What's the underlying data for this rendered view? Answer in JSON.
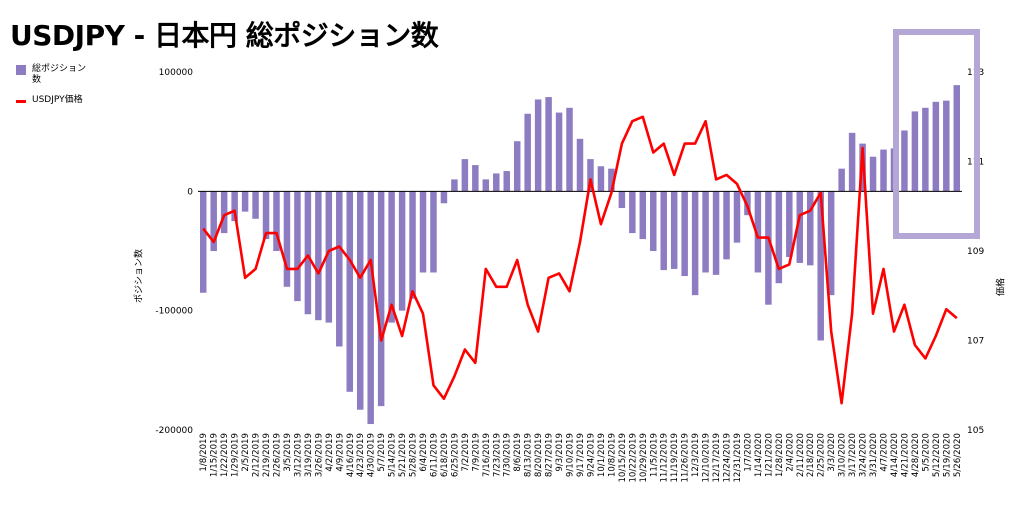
{
  "title": "USDJPY - 日本円 総ポジション数",
  "legend": [
    {
      "name": "総ポジション数",
      "kind": "bar"
    },
    {
      "name": "USDJPY価格",
      "kind": "line"
    }
  ],
  "colors": {
    "bar": "#8e7cc3",
    "line": "#ff0000",
    "highlight": "#b4a7d6",
    "grid": "#000000"
  },
  "chart_data": {
    "type": "bar+line",
    "title": "USDJPY - 日本円 総ポジション数",
    "ylabel": "ポジション数",
    "y2label": "価格",
    "ylim": [
      -200000,
      100000
    ],
    "y2lim": [
      105,
      113
    ],
    "yticks": [
      "100000",
      "0",
      "-100000",
      "-200000"
    ],
    "y2ticks": [
      "113",
      "111",
      "109",
      "107",
      "105"
    ],
    "categories": [
      "1/8/2019",
      "1/15/2019",
      "1/22/2019",
      "1/29/2019",
      "2/5/2019",
      "2/12/2019",
      "2/19/2019",
      "2/26/2019",
      "3/5/2019",
      "3/12/2019",
      "3/19/2019",
      "3/26/2019",
      "4/2/2019",
      "4/9/2019",
      "4/16/2019",
      "4/23/2019",
      "4/30/2019",
      "5/7/2019",
      "5/14/2019",
      "5/21/2019",
      "5/28/2019",
      "6/4/2019",
      "6/11/2019",
      "6/18/2019",
      "6/25/2019",
      "7/2/2019",
      "7/9/2019",
      "7/16/2019",
      "7/23/2019",
      "7/30/2019",
      "8/6/2019",
      "8/13/2019",
      "8/20/2019",
      "8/27/2019",
      "9/3/2019",
      "9/10/2019",
      "9/17/2019",
      "9/24/2019",
      "10/1/2019",
      "10/8/2019",
      "10/15/2019",
      "10/22/2019",
      "10/29/2019",
      "11/5/2019",
      "11/12/2019",
      "11/19/2019",
      "11/26/2019",
      "12/3/2019",
      "12/10/2019",
      "12/17/2019",
      "12/24/2019",
      "12/31/2019",
      "1/7/2020",
      "1/14/2020",
      "1/21/2020",
      "1/28/2020",
      "2/4/2020",
      "2/11/2020",
      "2/18/2020",
      "2/25/2020",
      "3/3/2020",
      "3/10/2020",
      "3/17/2020",
      "3/24/2020",
      "3/31/2020",
      "4/7/2020",
      "4/14/2020",
      "4/21/2020",
      "4/28/2020",
      "5/5/2020",
      "5/12/2020",
      "5/19/2020",
      "5/26/2020"
    ],
    "xtick_labels": [
      "1/8/2019",
      "1/15/2019",
      "1/22/2019",
      "1/29/2019",
      "2/5/2019",
      "2/12/2019",
      "2/19/2019",
      "2/26/2019",
      "3/5/2019",
      "3/12/2019",
      "3/19/2019",
      "3/26/2019",
      "4/2/2019",
      "4/9/2019",
      "4/16/2019",
      "4/23/2019",
      "4/30/2019",
      "5/7/2019",
      "5/14/2019",
      "5/21/2019",
      "5/28/2019",
      "6/4/2019",
      "6/11/2019",
      "6/18/2019",
      "6/25/2019",
      "7/2/2019",
      "7/9/2019",
      "7/16/2019",
      "7/23/2019",
      "7/30/2019",
      "8/6/2019",
      "8/13/2019",
      "8/20/2019",
      "8/27/2019",
      "9/3/2019",
      "9/10/2019",
      "9/17/2019",
      "9/24/2019",
      "10/1/2019",
      "10/8/2019",
      "10/15/2019",
      "10/22/2019",
      "10/29/2019",
      "11/5/2019",
      "11/12/2019",
      "11/19/2019",
      "11/26/2019",
      "12/3/2019",
      "12/10/2019",
      "12/17/2019",
      "12/24/2019",
      "12/31/2019",
      "1/7/2020",
      "1/14/2020",
      "1/21/2020",
      "1/28/2020",
      "2/4/2020",
      "2/11/2020",
      "2/18/2020",
      "2/25/2020",
      "3/3/2020",
      "3/10/2020",
      "3/17/2020",
      "3/24/2020",
      "3/31/2020",
      "4/7/2020",
      "4/14/2020",
      "4/21/2020",
      "4/28/2020",
      "5/5/2020",
      "5/12/2020",
      "5/19/2020",
      "5/26/2020"
    ],
    "series": [
      {
        "name": "総ポジション数",
        "type": "bar",
        "axis": "left",
        "values": [
          -85000,
          -50000,
          -35000,
          -25000,
          -17000,
          -23000,
          -40000,
          -50000,
          -80000,
          -92000,
          -103000,
          -108000,
          -110000,
          -130000,
          -168000,
          -183000,
          -195000,
          -180000,
          -110000,
          -100000,
          -90000,
          -68000,
          -68000,
          -10000,
          10000,
          27000,
          22000,
          10000,
          15000,
          17000,
          42000,
          65000,
          77000,
          79000,
          66000,
          70000,
          44000,
          27000,
          21000,
          19000,
          -14000,
          -35000,
          -40000,
          -50000,
          -66000,
          -65000,
          -71000,
          -87000,
          -68000,
          -70000,
          -57000,
          -43000,
          -20000,
          -68000,
          -95000,
          -77000,
          -55000,
          -60000,
          -62000,
          -125000,
          -87000,
          19000,
          49000,
          40000,
          29000,
          35000,
          36000,
          51000,
          67000,
          70000,
          75000,
          76000,
          89000
        ]
      },
      {
        "name": "USDJPY価格",
        "type": "line",
        "axis": "right",
        "values": [
          109.5,
          109.2,
          109.8,
          109.9,
          108.4,
          108.6,
          109.4,
          109.4,
          108.6,
          108.6,
          108.9,
          108.5,
          109.0,
          109.1,
          108.8,
          108.4,
          108.8,
          107.0,
          107.8,
          107.1,
          108.1,
          107.6,
          106.0,
          105.7,
          106.2,
          106.8,
          106.5,
          108.6,
          108.2,
          108.2,
          108.8,
          107.8,
          107.2,
          108.4,
          108.5,
          108.1,
          109.2,
          110.6,
          109.6,
          110.3,
          111.4,
          111.9,
          112.0,
          111.2,
          111.4,
          110.7,
          111.4,
          111.4,
          111.9,
          110.6,
          110.7,
          110.5,
          110.0,
          109.3,
          109.3,
          108.6,
          108.7,
          109.8,
          109.9,
          110.3,
          107.2,
          105.6,
          107.6,
          111.3,
          107.6,
          108.6,
          107.2,
          107.8,
          106.9,
          106.6,
          107.1,
          107.7,
          107.5
        ]
      }
    ],
    "annotations": [
      {
        "type": "highlight-rectangle",
        "around": "4/28/2020 - 5/26/2020 bars"
      }
    ],
    "grid": "zero-line only",
    "legend_position": "top-left"
  }
}
